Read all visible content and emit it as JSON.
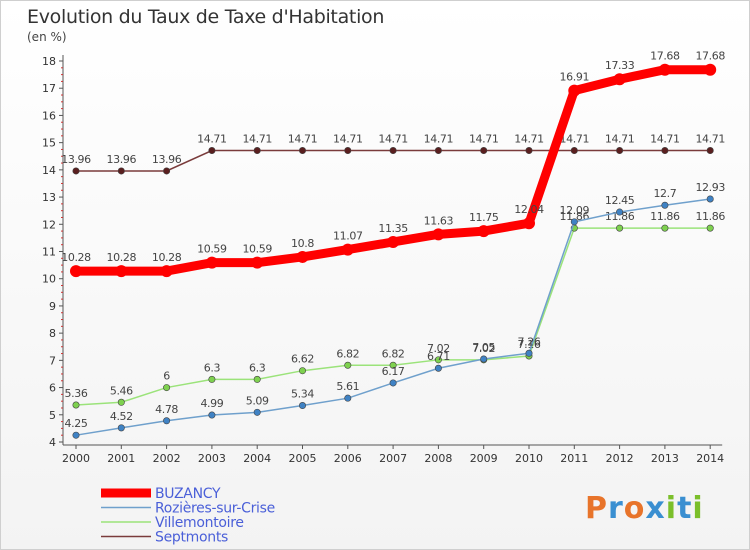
{
  "title": "Evolution du Taux de Taxe d'Habitation",
  "unit_label": "(en %)",
  "logo": {
    "text": "Proxiti",
    "letters": [
      "P",
      "r",
      "o",
      "x",
      "i",
      "t",
      "i"
    ],
    "colors": [
      "#e8742a",
      "#3a8fd1",
      "#e8742a",
      "#3a8fd1",
      "#7bbf2a",
      "#3a8fd1",
      "#7bbf2a"
    ]
  },
  "chart_data": {
    "type": "line",
    "x": [
      "2000",
      "2001",
      "2002",
      "2003",
      "2004",
      "2005",
      "2006",
      "2007",
      "2008",
      "2009",
      "2010",
      "2011",
      "2012",
      "2013",
      "2014"
    ],
    "ylim": [
      4,
      18
    ],
    "yticks": [
      "4",
      "5",
      "6",
      "7",
      "8",
      "9",
      "10",
      "11",
      "12",
      "13",
      "14",
      "15",
      "16",
      "17",
      "18"
    ],
    "grid": false,
    "legend_position": "bottom-left",
    "series": [
      {
        "name": "Septmonts",
        "color": "#7a3b3b",
        "marker": "#5a1f1f",
        "values": [
          13.96,
          13.96,
          13.96,
          14.71,
          14.71,
          14.71,
          14.71,
          14.71,
          14.71,
          14.71,
          14.71,
          14.71,
          14.71,
          14.71,
          14.71
        ],
        "labels": [
          "13.96",
          "13.96",
          "13.96",
          "14.71",
          "14.71",
          "14.71",
          "14.71",
          "14.71",
          "14.71",
          "14.71",
          "14.71",
          "14.71",
          "14.71",
          "14.71",
          "14.71"
        ]
      },
      {
        "name": "Villemontoire",
        "color": "#9be37a",
        "marker": "#7ed14f",
        "values": [
          5.36,
          5.46,
          6,
          6.3,
          6.3,
          6.62,
          6.82,
          6.82,
          7.02,
          7.02,
          7.16,
          11.86,
          11.86,
          11.86,
          11.86
        ],
        "labels": [
          "5.36",
          "5.46",
          "6",
          "6.3",
          "6.3",
          "6.62",
          "6.82",
          "6.82",
          "7.02",
          "7.02",
          "7.16",
          "11.86",
          "11.86",
          "11.86",
          "11.86"
        ]
      },
      {
        "name": "Rozières-sur-Crise",
        "color": "#6fa0cc",
        "marker": "#3f82c4",
        "values": [
          4.25,
          4.52,
          4.78,
          4.99,
          5.09,
          5.34,
          5.61,
          6.17,
          6.71,
          7.05,
          7.26,
          12.09,
          12.45,
          12.7,
          12.93
        ],
        "labels": [
          "4.25",
          "4.52",
          "4.78",
          "4.99",
          "5.09",
          "5.34",
          "5.61",
          "6.17",
          "6.71",
          "7.05",
          "7.26",
          "12.09",
          "12.45",
          "12.7",
          "12.93"
        ]
      },
      {
        "name": "BUZANCY",
        "color": "#ff0000",
        "marker": "#ff0000",
        "values": [
          10.28,
          10.28,
          10.28,
          10.59,
          10.59,
          10.8,
          11.07,
          11.35,
          11.63,
          11.75,
          12.04,
          16.91,
          17.33,
          17.68,
          17.68
        ],
        "labels": [
          "10.28",
          "10.28",
          "10.28",
          "10.59",
          "10.59",
          "10.8",
          "11.07",
          "11.35",
          "11.63",
          "11.75",
          "12.04",
          "16.91",
          "17.33",
          "17.68",
          "17.68"
        ]
      }
    ],
    "legend": [
      "BUZANCY",
      "Rozières-sur-Crise",
      "Villemontoire",
      "Septmonts"
    ]
  }
}
